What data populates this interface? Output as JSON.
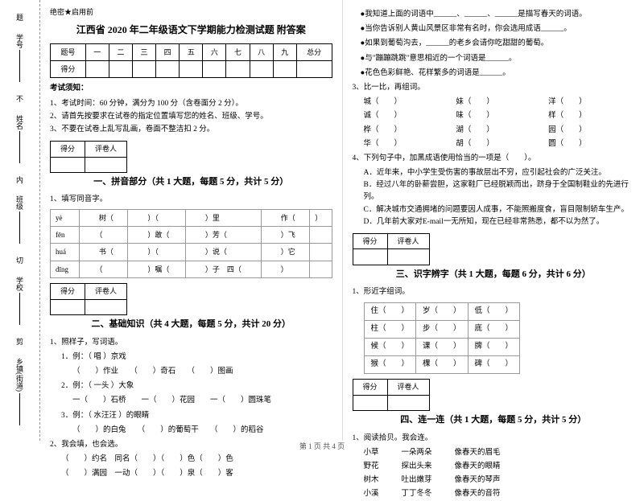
{
  "binding": {
    "labels": [
      "乡镇(街道)",
      "学校",
      "班级",
      "姓名",
      "学号"
    ],
    "marks": [
      "剪",
      "切",
      "内",
      "不",
      "题"
    ]
  },
  "left": {
    "seal": "绝密★启用前",
    "title": "江西省 2020 年二年级语文下学期能力检测试题  附答案",
    "score_headers": [
      "题号",
      "一",
      "二",
      "三",
      "四",
      "五",
      "六",
      "七",
      "八",
      "九",
      "总分"
    ],
    "score_row": "得分",
    "notice_h": "考试须知：",
    "notice": [
      "1、考试时间：60 分钟，满分为 100 分（含卷面分 2 分）。",
      "2、请首先按要求在试卷的指定位置填写您的姓名、班级、学号。",
      "3、不要在试卷上乱写乱画，卷面不整洁扣 2 分。"
    ],
    "eval_cells": [
      "得分",
      "评卷人"
    ],
    "sec1": "一、拼音部分（共 1 大题，每题 5 分，共计 5 分）",
    "q1": "1、填写同音字。",
    "pinyin": [
      [
        "yè",
        "　　树（",
        "　　）（",
        "　　）里",
        "　　作（",
        "）"
      ],
      [
        "fēn",
        "　　（",
        "　　）敢（",
        "　　）芳（",
        "　　）飞",
        ""
      ],
      [
        "huá",
        "　　书（",
        "　　）（",
        "　　）说（",
        "　　）它",
        ""
      ],
      [
        "dīng",
        "　　（",
        "　　）嘱（",
        "　　）子　四（",
        "　　）",
        ""
      ]
    ],
    "sec2": "二、基础知识（共 4 大题，每题 5 分，共计 20 分）",
    "q2_1": "1、照样子，写词语。",
    "ex1": "1．例：（ 唱 ）京戏",
    "ex1_items": "（　　）作业　　（　　）奇石　　（　　）图画",
    "ex2": "2．例：（ 一头 ）大象",
    "ex2_items": "一（　　）石桥　　一（　　）花园　　一（　　）圆珠笔",
    "ex3": "3．例：（ 水汪汪 ）的眼睛",
    "ex3_items": "（　　）的白兔　　（　　）的葡萄干　　（　　）的稻谷",
    "q2_2": "2、我会填，也会选。",
    "fill1": "（　　）约名　同名（　　）（　　）色（　　）色",
    "fill2": "（　　）满园　一动（　　）（　　）泉（　　）客"
  },
  "right": {
    "bullets": [
      "●我知道上面的词语中______、______、______是描写春天的词语。",
      "●当你告诉别人黄山风景区非常有名时，你会选用成语______。",
      "●如果到葡萄沟去，______的老乡会请你吃甜甜的葡萄。",
      "●与\"蹦蹦跳跳\"意思相近的一个词语是______。",
      "●花色色彩鲜艳、花样繁多的词语是______。"
    ],
    "q3": "3、比一比，再组词。",
    "comp": [
      "城（　　）",
      "妹（　　）",
      "洋（　　）",
      "诚（　　）",
      "味（　　）",
      "样（　　）",
      "桦（　　）",
      "湖（　　）",
      "园（　　）",
      "华（　　）",
      "胡（　　）",
      "圆（　　）"
    ],
    "q4": "4、下列句子中，加黑成语使用恰当的一项是（　　）。",
    "opts": [
      "A．近年来，中小学生受伤害的事故层出不穷，应引起社会的广泛关注。",
      "B．经过八年的卧薪尝胆，这家鞋厂已经脱颖而出，跻身于全国制鞋业的先进行列。",
      "C．解决城市交通拥堵的问题要因人成事，不能照搬度食，盲目限制轿车生产。",
      "D．几年前大家对E-mail一无所知，现在已经非常熟悉，都不以为然了。"
    ],
    "sec3": "三、识字辨字（共 1 大题，每题 6 分，共计 6 分）",
    "q3_1": "1、形近字组词。",
    "chars": [
      [
        "住（　　）",
        "岁（　　）",
        "低（　　）"
      ],
      [
        "柱（　　）",
        "步（　　）",
        "底（　　）"
      ],
      [
        "候（　　）",
        "课（　　）",
        "牌（　　）"
      ],
      [
        "猴（　　）",
        "棵（　　）",
        "碑（　　）"
      ]
    ],
    "sec4": "四、连一连（共 1 大题，每题 5 分，共计 5 分）",
    "q4_1": "1、阅读拾贝。我会连。",
    "match": [
      [
        "小草",
        "一朵两朵",
        "像春天的眉毛"
      ],
      [
        "野花",
        "探出头来",
        "像春天的眼睛"
      ],
      [
        "树木",
        "吐出嫩芽",
        "像春天的琴声"
      ],
      [
        "小溪",
        "丁丁冬冬",
        "像春天的音符"
      ]
    ]
  },
  "footer": "第 1 页 共 4 页"
}
